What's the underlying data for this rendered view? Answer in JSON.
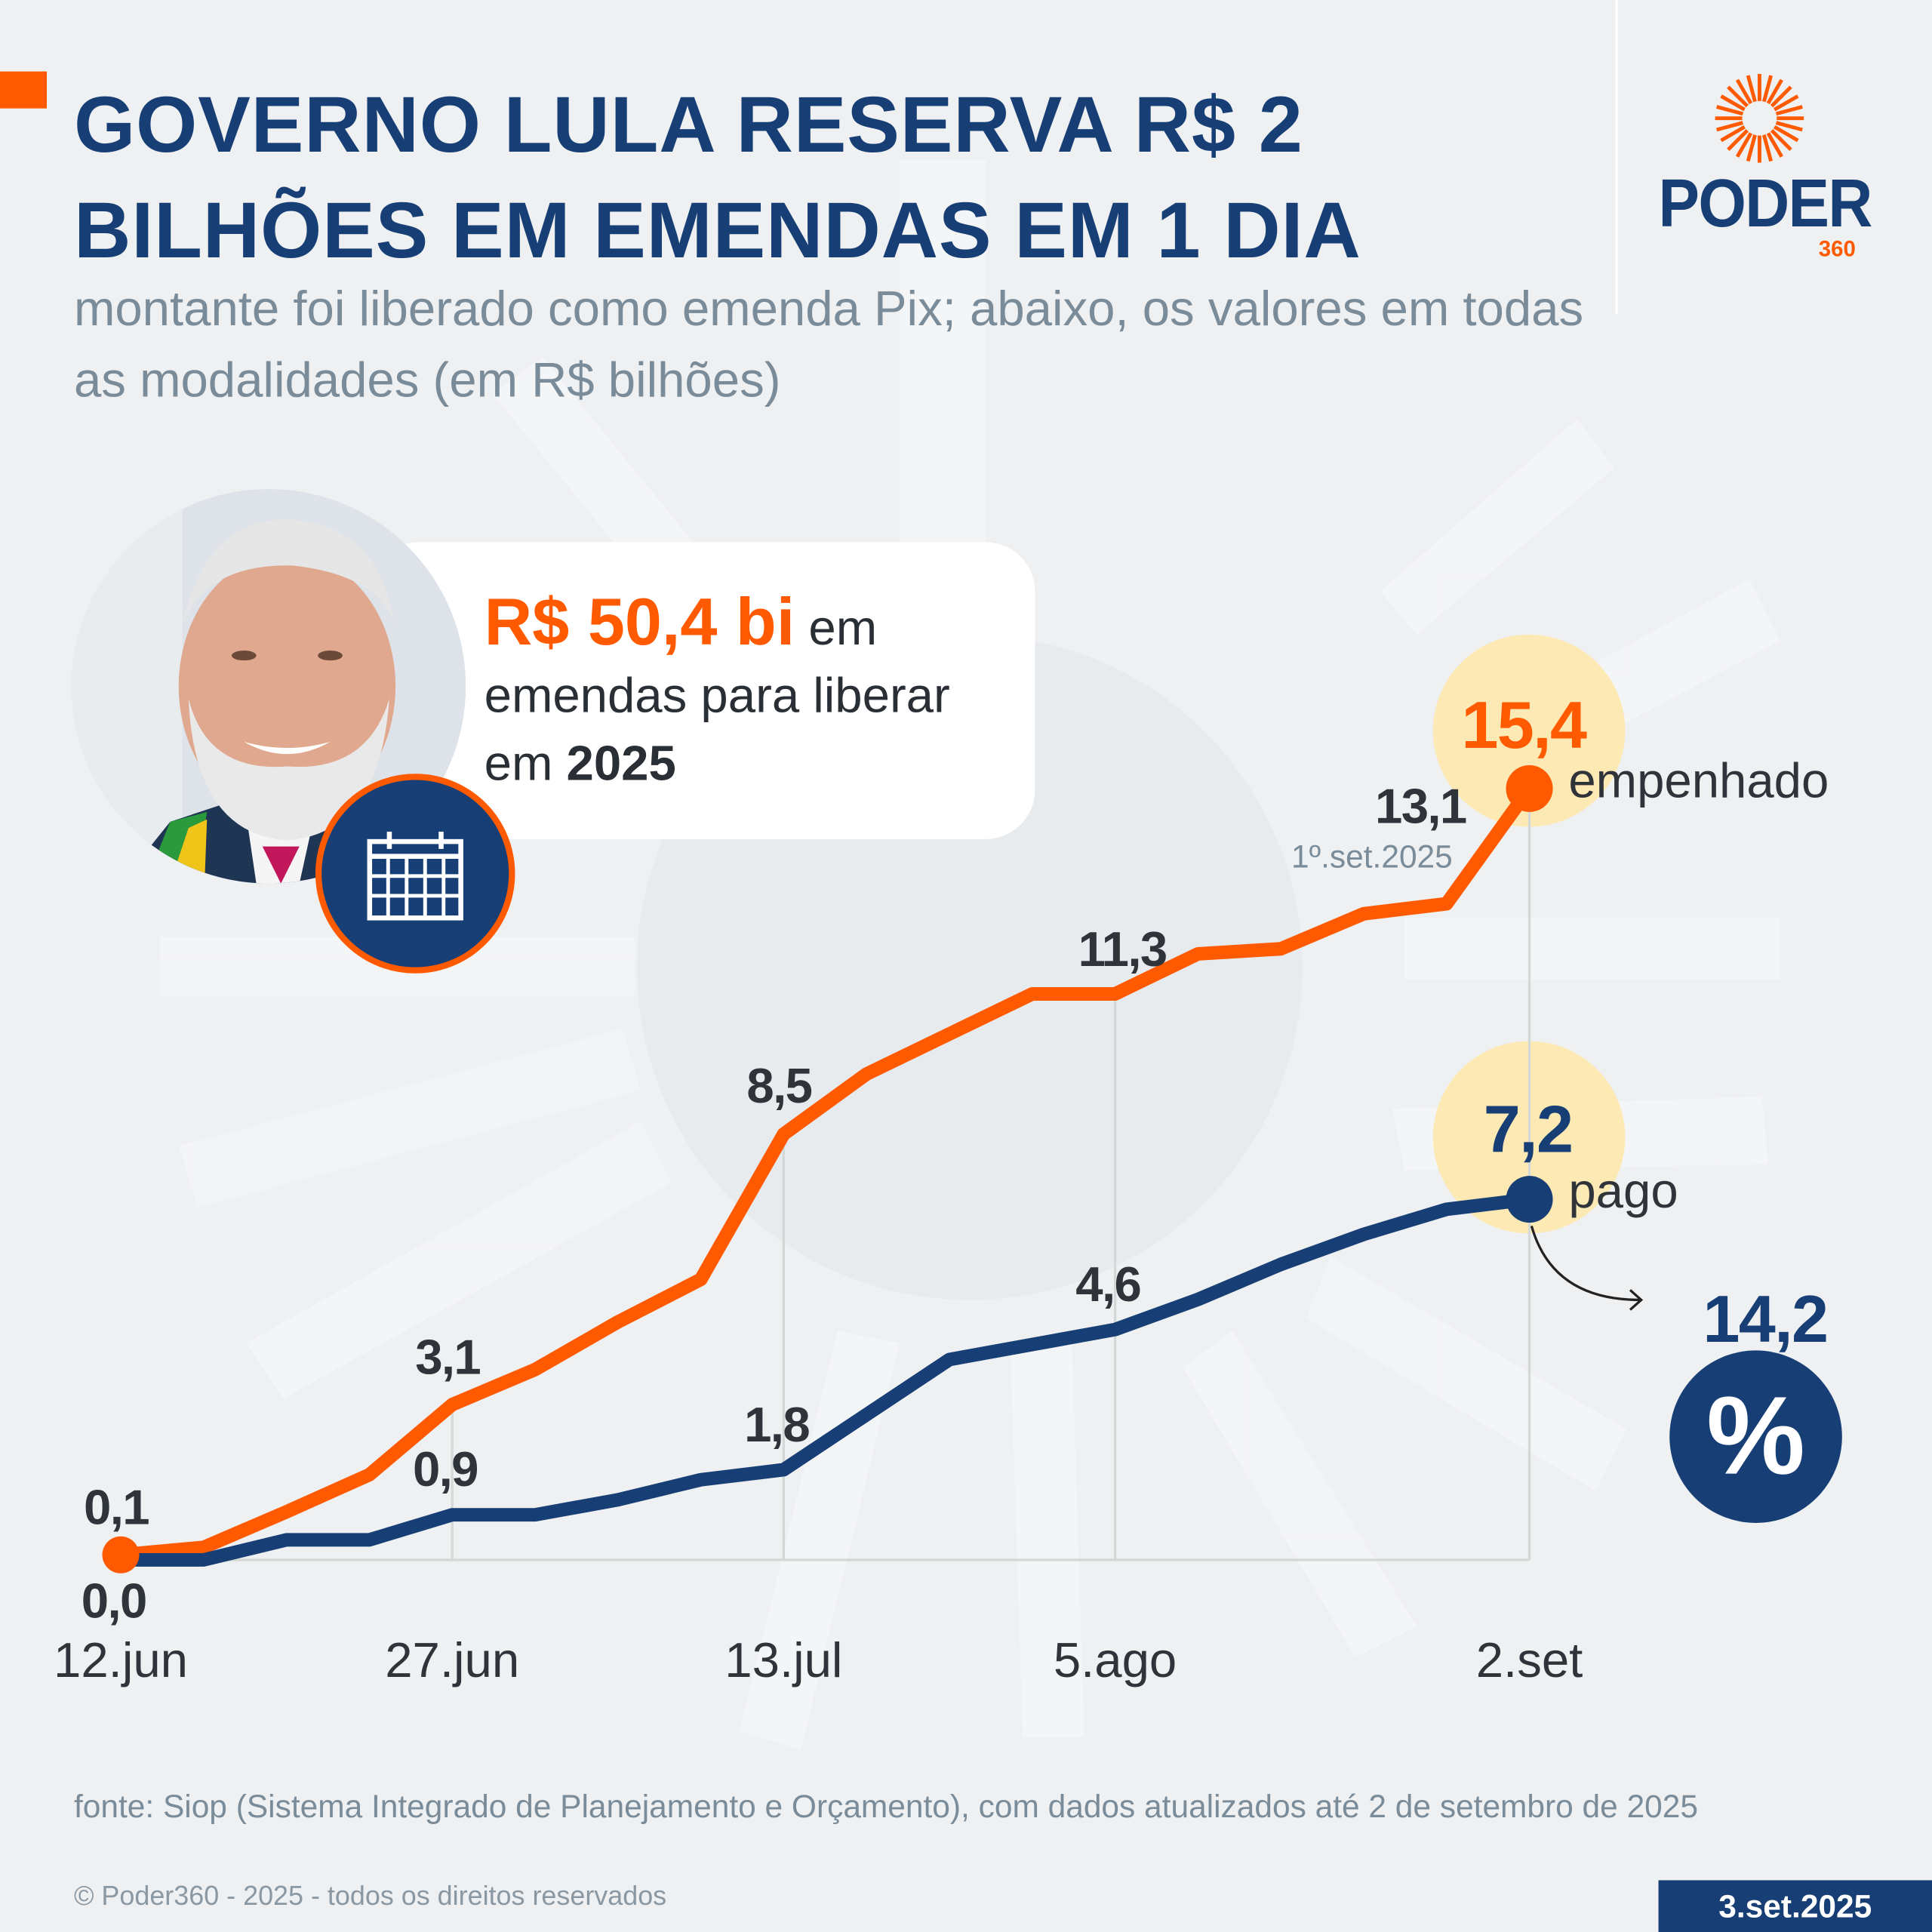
{
  "header": {
    "title": "GOVERNO LULA RESERVA R$ 2 BILHÕES EM EMENDAS EM 1 DIA",
    "subtitle": "montante foi liberado como emenda Pix; abaixo, os valores em todas as modalidades (em R$ bilhões)"
  },
  "logo": {
    "name": "PODER",
    "suffix": "360"
  },
  "callout": {
    "amount": "R$ 50,4 bi",
    "text1": " em emendas para liberar em ",
    "year": "2025",
    "icon": "calendar-icon"
  },
  "chart_data": {
    "type": "line",
    "x_tick_labels": [
      "12.jun",
      "27.jun",
      "13.jul",
      "5.ago",
      "2.set"
    ],
    "x": [
      "12.jun",
      "",
      "",
      "",
      "27.jun",
      "",
      "",
      "",
      "13.jul",
      "",
      "",
      "",
      "5.ago",
      "",
      "",
      "",
      "1º.set.2025",
      "2.set"
    ],
    "series": [
      {
        "name": "empenhado",
        "color": "#ff5a00",
        "values": [
          0.1,
          0.25,
          0.96,
          1.7,
          3.1,
          3.8,
          4.75,
          5.6,
          8.5,
          9.7,
          10.5,
          11.3,
          11.3,
          12.1,
          12.2,
          12.9,
          13.1,
          15.4
        ]
      },
      {
        "name": "pago",
        "color": "#173f75",
        "values": [
          0.0,
          0.0,
          0.4,
          0.4,
          0.9,
          0.9,
          1.2,
          1.6,
          1.8,
          2.9,
          4.0,
          4.3,
          4.6,
          5.2,
          5.9,
          6.5,
          7.0,
          7.2
        ]
      }
    ],
    "data_labels": {
      "empenhado": [
        {
          "i": 0,
          "text": "0,1"
        },
        {
          "i": 4,
          "text": "3,1"
        },
        {
          "i": 8,
          "text": "8,5"
        },
        {
          "i": 12,
          "text": "11,3"
        },
        {
          "i": 16,
          "text": "13,1",
          "note": "1º.set.2025"
        },
        {
          "i": 17,
          "text": "15,4"
        }
      ],
      "pago": [
        {
          "i": 0,
          "text": "0,0"
        },
        {
          "i": 4,
          "text": "0,9"
        },
        {
          "i": 8,
          "text": "1,8"
        },
        {
          "i": 12,
          "text": "4,6"
        },
        {
          "i": 17,
          "text": "7,2"
        }
      ]
    },
    "percent": {
      "value": "14,2",
      "symbol": "%"
    },
    "ylim": [
      0,
      15.4
    ]
  },
  "footer": {
    "source": "fonte: Siop (Sistema Integrado de Planejamento e Orçamento), com dados atualizados até 2 de setembro de 2025",
    "copyright": "© Poder360 - 2025 - todos os direitos reservados",
    "date": "3.set.2025"
  }
}
